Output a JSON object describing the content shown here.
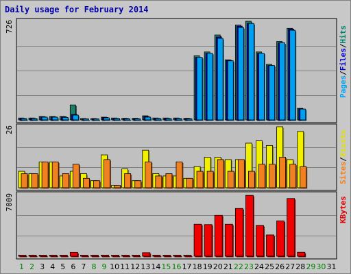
{
  "chart_data": {
    "type": "bar",
    "title": "Daily usage for February 2014",
    "categories": [
      "1",
      "2",
      "3",
      "4",
      "5",
      "6",
      "7",
      "8",
      "9",
      "10",
      "11",
      "12",
      "13",
      "14",
      "15",
      "16",
      "17",
      "18",
      "19",
      "20",
      "21",
      "22",
      "23",
      "24",
      "25",
      "26",
      "27",
      "28",
      "29",
      "30",
      "31"
    ],
    "weekend_days": [
      "1",
      "2",
      "8",
      "9",
      "15",
      "16",
      "22",
      "23",
      "29",
      "30"
    ],
    "panels": [
      {
        "name": "hits-panel",
        "max_label": "726",
        "ymax": 726,
        "right_labels": [
          {
            "text": "Pages",
            "color": "#00a0f0"
          },
          {
            "text": "/",
            "color": "#000000"
          },
          {
            "text": "Files",
            "color": "#0000cc"
          },
          {
            "text": "/",
            "color": "#000000"
          },
          {
            "text": "Hits",
            "color": "#00806a"
          }
        ],
        "series": [
          {
            "name": "Hits",
            "color": "#1f7f6a",
            "values": [
              14,
              14,
              25,
              25,
              25,
              110,
              10,
              10,
              20,
              14,
              12,
              12,
              30,
              14,
              14,
              14,
              12,
              472,
              500,
              625,
              442,
              698,
              726,
              500,
              409,
              577,
              674,
              85,
              0,
              0,
              0
            ]
          },
          {
            "name": "Files",
            "color": "#0000c8",
            "values": [
              12,
              12,
              22,
              22,
              22,
              40,
              8,
              8,
              18,
              12,
              10,
              10,
              25,
              12,
              12,
              12,
              10,
              460,
              490,
              610,
              438,
              690,
              710,
              490,
              400,
              567,
              668,
              80,
              0,
              0,
              0
            ]
          },
          {
            "name": "Pages",
            "color": "#00a0f0",
            "values": [
              10,
              10,
              20,
              20,
              18,
              35,
              7,
              7,
              15,
              10,
              8,
              8,
              20,
              10,
              10,
              10,
              8,
              460,
              490,
              600,
              435,
              680,
              710,
              490,
              400,
              567,
              660,
              80,
              0,
              0,
              0
            ]
          }
        ]
      },
      {
        "name": "visits-panel",
        "max_label": "26",
        "ymax": 26,
        "right_labels": [
          {
            "text": "Sites",
            "color": "#f08020"
          },
          {
            "text": "/",
            "color": "#000000"
          },
          {
            "text": "Visits",
            "color": "#e0e000"
          }
        ],
        "series": [
          {
            "name": "Visits",
            "color": "#f0f000",
            "values": [
              7,
              6,
              11,
              11,
              5,
              7,
              6,
              3,
              14,
              1,
              8,
              3,
              16,
              6,
              5,
              5,
              4,
              9,
              13,
              13,
              12,
              12,
              19,
              20,
              18,
              26,
              12,
              24,
              0,
              0,
              0
            ]
          },
          {
            "name": "Sites",
            "color": "#f08020",
            "values": [
              6,
              6,
              11,
              11,
              6,
              10,
              4,
              3,
              12,
              1,
              6,
              3,
              11,
              5,
              6,
              11,
              4,
              7,
              7,
              12,
              7,
              12,
              7,
              10,
              10,
              13,
              10,
              9,
              0,
              0,
              0
            ]
          }
        ]
      },
      {
        "name": "kbytes-panel",
        "max_label": "7009",
        "ymax": 7009,
        "right_labels": [
          {
            "text": "KBytes",
            "color": "#e00000"
          }
        ],
        "series": [
          {
            "name": "KBytes",
            "color": "#f00000",
            "values": [
              70,
              70,
              110,
              110,
              120,
              440,
              60,
              60,
              120,
              60,
              70,
              60,
              400,
              100,
              90,
              90,
              60,
              3640,
              3600,
              4650,
              3640,
              5430,
              6920,
              3490,
              2420,
              4010,
              6560,
              450,
              0,
              0,
              0
            ]
          }
        ]
      }
    ]
  }
}
